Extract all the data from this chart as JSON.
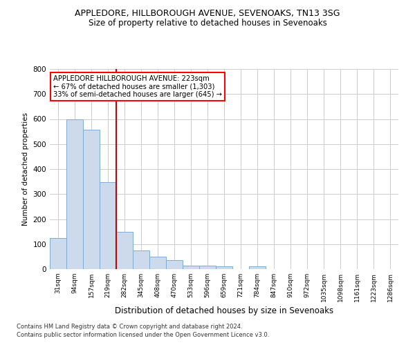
{
  "title1": "APPLEDORE, HILLBOROUGH AVENUE, SEVENOAKS, TN13 3SG",
  "title2": "Size of property relative to detached houses in Sevenoaks",
  "xlabel": "Distribution of detached houses by size in Sevenoaks",
  "ylabel": "Number of detached properties",
  "footer1": "Contains HM Land Registry data © Crown copyright and database right 2024.",
  "footer2": "Contains public sector information licensed under the Open Government Licence v3.0.",
  "annotation_title": "APPLEDORE HILLBOROUGH AVENUE: 223sqm",
  "annotation_line1": "← 67% of detached houses are smaller (1,303)",
  "annotation_line2": "33% of semi-detached houses are larger (645) →",
  "bar_color": "#ccdaeb",
  "bar_edge_color": "#7aadd4",
  "categories": [
    "31sqm",
    "94sqm",
    "157sqm",
    "219sqm",
    "282sqm",
    "345sqm",
    "408sqm",
    "470sqm",
    "533sqm",
    "596sqm",
    "659sqm",
    "721sqm",
    "784sqm",
    "847sqm",
    "910sqm",
    "972sqm",
    "1035sqm",
    "1098sqm",
    "1161sqm",
    "1223sqm",
    "1286sqm"
  ],
  "values": [
    125,
    600,
    557,
    347,
    150,
    75,
    50,
    35,
    15,
    13,
    10,
    0,
    10,
    0,
    0,
    0,
    0,
    0,
    0,
    0,
    0
  ],
  "ylim": [
    0,
    800
  ],
  "yticks": [
    0,
    100,
    200,
    300,
    400,
    500,
    600,
    700,
    800
  ],
  "redline_bar_index": 3,
  "grid_color": "#cccccc",
  "background_color": "#ffffff",
  "redline_color": "#cc0000"
}
